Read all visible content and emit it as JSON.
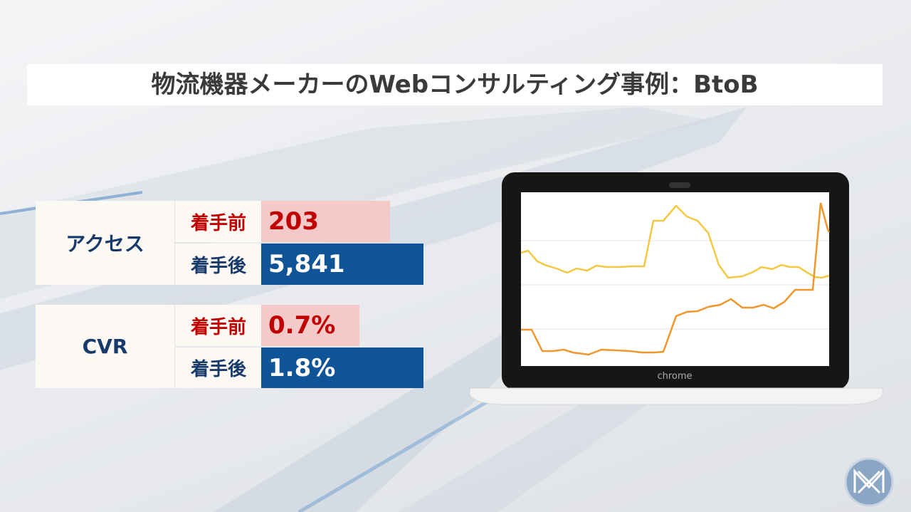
{
  "title": "物流機器メーカーのWebコンサルティング事例：BtoB",
  "metrics": [
    {
      "label": "アクセス",
      "before_label": "着手前",
      "before": "203",
      "after_label": "着手後",
      "after": "5,841"
    },
    {
      "label": "CVR",
      "before_label": "着手前",
      "before": "0.7%",
      "after_label": "着手後",
      "after": "1.8%"
    }
  ],
  "laptop_brand": "chrome"
}
